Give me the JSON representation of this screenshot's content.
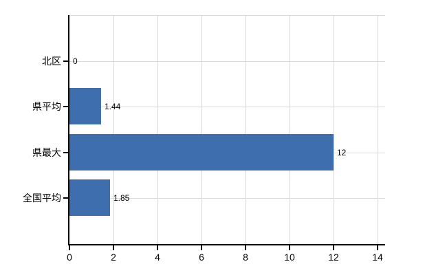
{
  "chart_data": {
    "type": "bar",
    "orientation": "horizontal",
    "title": "",
    "xlabel": "",
    "ylabel": "",
    "categories": [
      "北区",
      "県平均",
      "県最大",
      "全国平均"
    ],
    "values": [
      0,
      1.44,
      12,
      1.85
    ],
    "value_labels": [
      "0",
      "1.44",
      "12",
      "1.85"
    ],
    "xlim": [
      0,
      14
    ],
    "xticks": [
      0,
      2,
      4,
      6,
      8,
      10,
      12,
      14
    ],
    "xtick_labels": [
      "0",
      "2",
      "4",
      "6",
      "8",
      "10",
      "12",
      "14"
    ],
    "grid": true,
    "legend": false,
    "colors": {
      "bar": "#3e6ead",
      "grid": "#d9d9d9",
      "axis": "#000000",
      "text": "#000000",
      "background": "#ffffff"
    }
  }
}
